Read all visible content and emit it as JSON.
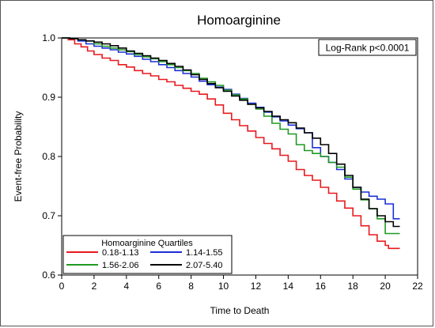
{
  "chart_data": {
    "type": "line",
    "step": true,
    "title": "Homoarginine",
    "xlabel": "Time to Death",
    "ylabel": "Event-free Probability",
    "xlim": [
      0,
      22
    ],
    "ylim": [
      0.6,
      1.0
    ],
    "x_ticks": [
      0,
      2,
      4,
      6,
      8,
      10,
      12,
      14,
      16,
      18,
      20,
      22
    ],
    "y_ticks": [
      0.6,
      0.7,
      0.8,
      0.9,
      1.0
    ],
    "x_tick_labels": [
      "0",
      "2",
      "4",
      "6",
      "8",
      "10",
      "12",
      "14",
      "16",
      "18",
      "20",
      "22"
    ],
    "y_tick_labels": [
      "0.6",
      "0.7",
      "0.8",
      "0.9",
      "1.0"
    ],
    "grid": false,
    "annotation": "Log-Rank p<0.0001",
    "legend": {
      "title": "Homoarginine Quartiles",
      "placement": "bottom-left"
    },
    "series": [
      {
        "name": "0.18-1.13",
        "color": "#e8191e",
        "points": [
          [
            0,
            1.0
          ],
          [
            0.4,
            0.997
          ],
          [
            0.8,
            0.99
          ],
          [
            1.2,
            0.985
          ],
          [
            1.6,
            0.978
          ],
          [
            2,
            0.972
          ],
          [
            2.5,
            0.966
          ],
          [
            3,
            0.962
          ],
          [
            3.5,
            0.955
          ],
          [
            4,
            0.951
          ],
          [
            4.5,
            0.945
          ],
          [
            5,
            0.94
          ],
          [
            5.5,
            0.936
          ],
          [
            6,
            0.93
          ],
          [
            6.5,
            0.926
          ],
          [
            7,
            0.92
          ],
          [
            7.5,
            0.915
          ],
          [
            8,
            0.91
          ],
          [
            8.5,
            0.905
          ],
          [
            9,
            0.897
          ],
          [
            9.5,
            0.887
          ],
          [
            10,
            0.873
          ],
          [
            10.5,
            0.862
          ],
          [
            11,
            0.852
          ],
          [
            11.5,
            0.843
          ],
          [
            12,
            0.832
          ],
          [
            12.5,
            0.822
          ],
          [
            13,
            0.813
          ],
          [
            13.5,
            0.802
          ],
          [
            14,
            0.792
          ],
          [
            14.5,
            0.778
          ],
          [
            15,
            0.768
          ],
          [
            15.5,
            0.76
          ],
          [
            16,
            0.748
          ],
          [
            16.5,
            0.738
          ],
          [
            17,
            0.725
          ],
          [
            17.5,
            0.713
          ],
          [
            18,
            0.7
          ],
          [
            18.5,
            0.683
          ],
          [
            19,
            0.668
          ],
          [
            19.5,
            0.657
          ],
          [
            20,
            0.65
          ],
          [
            20.2,
            0.645
          ],
          [
            20.9,
            0.645
          ]
        ]
      },
      {
        "name": "1.14-1.55",
        "color": "#1c2fd6",
        "points": [
          [
            0,
            1.0
          ],
          [
            0.5,
            0.999
          ],
          [
            1,
            0.995
          ],
          [
            1.5,
            0.99
          ],
          [
            2,
            0.986
          ],
          [
            2.5,
            0.983
          ],
          [
            3,
            0.98
          ],
          [
            3.5,
            0.976
          ],
          [
            4,
            0.973
          ],
          [
            4.5,
            0.969
          ],
          [
            5,
            0.964
          ],
          [
            5.5,
            0.96
          ],
          [
            6,
            0.955
          ],
          [
            6.5,
            0.95
          ],
          [
            7,
            0.945
          ],
          [
            7.5,
            0.94
          ],
          [
            8,
            0.934
          ],
          [
            8.5,
            0.927
          ],
          [
            9,
            0.921
          ],
          [
            9.5,
            0.917
          ],
          [
            10,
            0.913
          ],
          [
            10.5,
            0.905
          ],
          [
            11,
            0.898
          ],
          [
            11.5,
            0.89
          ],
          [
            12,
            0.883
          ],
          [
            12.5,
            0.875
          ],
          [
            13,
            0.867
          ],
          [
            13.5,
            0.86
          ],
          [
            14,
            0.853
          ],
          [
            14.5,
            0.847
          ],
          [
            15,
            0.84
          ],
          [
            15.5,
            0.815
          ],
          [
            16,
            0.8
          ],
          [
            16.5,
            0.79
          ],
          [
            17,
            0.778
          ],
          [
            17.5,
            0.762
          ],
          [
            18,
            0.748
          ],
          [
            18.5,
            0.74
          ],
          [
            19,
            0.733
          ],
          [
            19.5,
            0.728
          ],
          [
            20,
            0.72
          ],
          [
            20.5,
            0.695
          ],
          [
            20.9,
            0.695
          ]
        ]
      },
      {
        "name": "1.56-2.06",
        "color": "#1e9a23",
        "points": [
          [
            0,
            1.0
          ],
          [
            0.5,
            0.999
          ],
          [
            1,
            0.997
          ],
          [
            1.5,
            0.995
          ],
          [
            2,
            0.99
          ],
          [
            2.5,
            0.986
          ],
          [
            3,
            0.983
          ],
          [
            3.5,
            0.98
          ],
          [
            4,
            0.977
          ],
          [
            4.5,
            0.972
          ],
          [
            5,
            0.968
          ],
          [
            5.5,
            0.965
          ],
          [
            6,
            0.96
          ],
          [
            6.5,
            0.955
          ],
          [
            7,
            0.95
          ],
          [
            7.5,
            0.945
          ],
          [
            8,
            0.94
          ],
          [
            8.5,
            0.932
          ],
          [
            9,
            0.926
          ],
          [
            9.5,
            0.92
          ],
          [
            10,
            0.912
          ],
          [
            10.5,
            0.904
          ],
          [
            11,
            0.897
          ],
          [
            11.5,
            0.888
          ],
          [
            12,
            0.88
          ],
          [
            12.5,
            0.868
          ],
          [
            13,
            0.856
          ],
          [
            13.5,
            0.846
          ],
          [
            14,
            0.838
          ],
          [
            14.5,
            0.82
          ],
          [
            15,
            0.81
          ],
          [
            15.5,
            0.805
          ],
          [
            16,
            0.8
          ],
          [
            16.5,
            0.79
          ],
          [
            17,
            0.782
          ],
          [
            17.5,
            0.765
          ],
          [
            18,
            0.745
          ],
          [
            18.5,
            0.727
          ],
          [
            19,
            0.712
          ],
          [
            19.5,
            0.695
          ],
          [
            20,
            0.67
          ],
          [
            20.9,
            0.67
          ]
        ]
      },
      {
        "name": "2.07-5.40",
        "color": "#000000",
        "points": [
          [
            0,
            1.0
          ],
          [
            0.5,
            0.999
          ],
          [
            1,
            0.997
          ],
          [
            1.5,
            0.995
          ],
          [
            2,
            0.993
          ],
          [
            2.5,
            0.99
          ],
          [
            3,
            0.987
          ],
          [
            3.5,
            0.983
          ],
          [
            4,
            0.978
          ],
          [
            4.5,
            0.974
          ],
          [
            5,
            0.97
          ],
          [
            5.5,
            0.966
          ],
          [
            6,
            0.962
          ],
          [
            6.5,
            0.957
          ],
          [
            7,
            0.952
          ],
          [
            7.5,
            0.946
          ],
          [
            8,
            0.938
          ],
          [
            8.5,
            0.93
          ],
          [
            9,
            0.923
          ],
          [
            9.5,
            0.916
          ],
          [
            10,
            0.91
          ],
          [
            10.5,
            0.902
          ],
          [
            11,
            0.895
          ],
          [
            11.5,
            0.888
          ],
          [
            12,
            0.882
          ],
          [
            12.5,
            0.876
          ],
          [
            13,
            0.868
          ],
          [
            13.5,
            0.862
          ],
          [
            14,
            0.857
          ],
          [
            14.5,
            0.848
          ],
          [
            15,
            0.84
          ],
          [
            15.5,
            0.831
          ],
          [
            16,
            0.82
          ],
          [
            16.5,
            0.805
          ],
          [
            17,
            0.787
          ],
          [
            17.5,
            0.768
          ],
          [
            18,
            0.748
          ],
          [
            18.5,
            0.728
          ],
          [
            19,
            0.712
          ],
          [
            19.5,
            0.7
          ],
          [
            20,
            0.69
          ],
          [
            20.5,
            0.682
          ],
          [
            20.9,
            0.682
          ]
        ]
      }
    ]
  }
}
